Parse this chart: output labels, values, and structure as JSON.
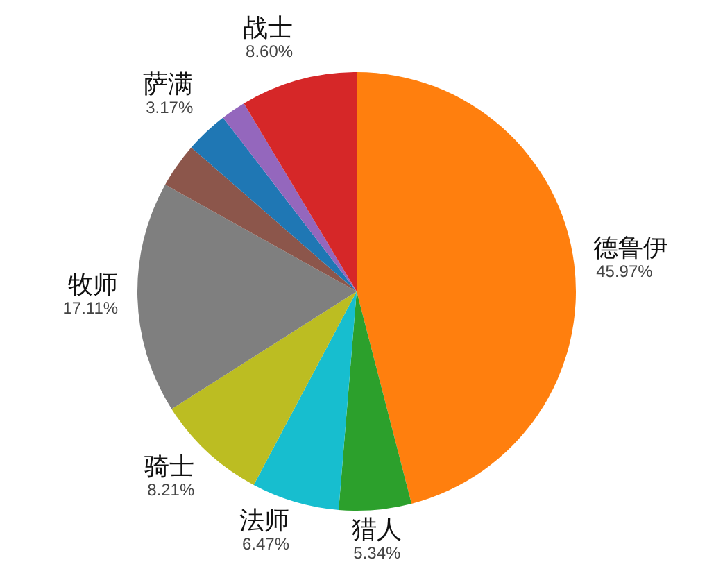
{
  "chart_data": {
    "type": "pie",
    "categories": [
      "德鲁伊",
      "猎人",
      "法师",
      "骑士",
      "牧师",
      null,
      "萨满",
      null,
      "战士"
    ],
    "values": [
      45.97,
      5.34,
      6.47,
      8.21,
      17.11,
      3.3,
      3.17,
      1.83,
      8.6
    ],
    "value_labels": [
      "45.97%",
      "5.34%",
      "6.47%",
      "8.21%",
      "17.11%",
      null,
      "3.17%",
      null,
      "8.60%"
    ],
    "colors": [
      "#ff7f0e",
      "#2ca02c",
      "#17becf",
      "#bcbd22",
      "#7f7f7f",
      "#8c564b",
      "#1f77b4",
      "#9467bd",
      "#d62728"
    ],
    "legend": false
  }
}
